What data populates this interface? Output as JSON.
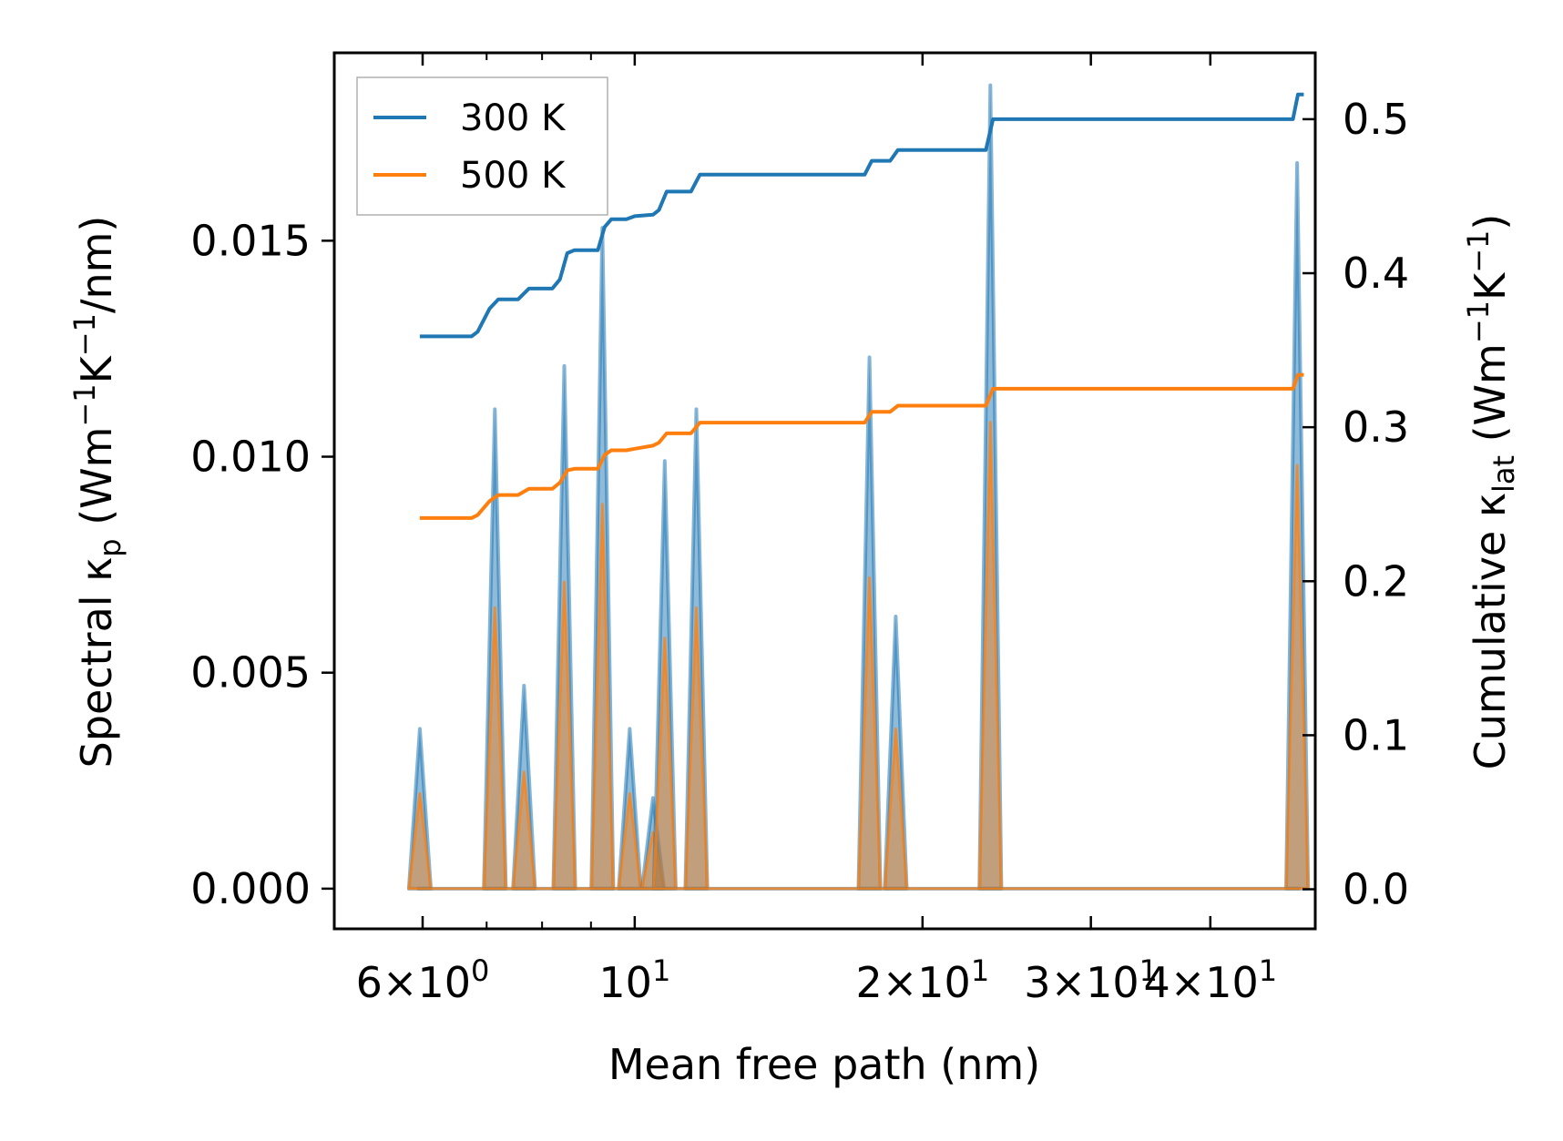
{
  "chart_data": {
    "type": "line",
    "x_scale": "log",
    "xlabel": "Mean free path (nm)",
    "xlim": [
      4.85,
      51.5
    ],
    "x_ticks": [
      {
        "value": 6,
        "mantissa": "6",
        "exponent": "0"
      },
      {
        "value": 10,
        "mantissa": "",
        "exponent": "1"
      },
      {
        "value": 20,
        "mantissa": "2",
        "exponent": "1"
      },
      {
        "value": 30,
        "mantissa": "3",
        "exponent": "1"
      },
      {
        "value": 40,
        "mantissa": "4",
        "exponent": "1"
      }
    ],
    "left_axis": {
      "label_prefix": "Spectral κ",
      "label_sub": "p",
      "label_unit_open": " (Wm",
      "label_exp1": "−1",
      "label_unit_mid": "K",
      "label_exp2": "−1",
      "label_unit_close": "/nm)",
      "ylim": [
        -0.00093,
        0.01935
      ],
      "ticks": [
        "0.000",
        "0.005",
        "0.010",
        "0.015"
      ],
      "tick_values": [
        0,
        0.005,
        0.01,
        0.015
      ]
    },
    "right_axis": {
      "label_prefix": "Cumulative κ",
      "label_sub": "lat",
      "label_unit_open": " (Wm",
      "label_exp1": "−1",
      "label_unit_mid": "K",
      "label_exp2": "−1",
      "label_unit_close": ")",
      "ylim": [
        -0.0257,
        0.5431
      ],
      "ticks": [
        "0.0",
        "0.1",
        "0.2",
        "0.3",
        "0.4",
        "0.5"
      ],
      "tick_values": [
        0,
        0.1,
        0.2,
        0.3,
        0.4,
        0.5
      ]
    },
    "legend": {
      "position": "top-left",
      "entries": [
        {
          "label": "300 K",
          "color": "#1f77b4"
        },
        {
          "label": "500 K",
          "color": "#ff7f0e"
        }
      ]
    },
    "spectral_peaks": [
      {
        "x": 5.96,
        "v300": 0.0037,
        "v500": 0.0022
      },
      {
        "x": 7.14,
        "v300": 0.0111,
        "v500": 0.0065
      },
      {
        "x": 7.66,
        "v300": 0.0047,
        "v500": 0.0027
      },
      {
        "x": 8.44,
        "v300": 0.0121,
        "v500": 0.0071
      },
      {
        "x": 9.25,
        "v300": 0.0153,
        "v500": 0.0089
      },
      {
        "x": 9.88,
        "v300": 0.0037,
        "v500": 0.0022
      },
      {
        "x": 10.45,
        "v300": 0.0021,
        "v500": 0.0013
      },
      {
        "x": 10.75,
        "v300": 0.0099,
        "v500": 0.0058
      },
      {
        "x": 11.6,
        "v300": 0.0111,
        "v500": 0.0065
      },
      {
        "x": 17.6,
        "v300": 0.0123,
        "v500": 0.0072
      },
      {
        "x": 18.75,
        "v300": 0.0063,
        "v500": 0.0037
      },
      {
        "x": 23.55,
        "v300": 0.0186,
        "v500": 0.0108
      },
      {
        "x": 49.3,
        "v300": 0.0168,
        "v500": 0.0098
      }
    ],
    "series": [
      {
        "name": "300 K",
        "color": "#1f77b4",
        "cumulative": [
          [
            5.96,
            0.359
          ],
          [
            6.75,
            0.359
          ],
          [
            6.85,
            0.362
          ],
          [
            7.05,
            0.377
          ],
          [
            7.2,
            0.383
          ],
          [
            7.55,
            0.383
          ],
          [
            7.75,
            0.39
          ],
          [
            8.2,
            0.39
          ],
          [
            8.35,
            0.396
          ],
          [
            8.5,
            0.413
          ],
          [
            8.65,
            0.415
          ],
          [
            9.15,
            0.415
          ],
          [
            9.3,
            0.43
          ],
          [
            9.45,
            0.435
          ],
          [
            9.8,
            0.435
          ],
          [
            10.0,
            0.437
          ],
          [
            10.45,
            0.438
          ],
          [
            10.6,
            0.441
          ],
          [
            10.8,
            0.453
          ],
          [
            11.45,
            0.453
          ],
          [
            11.7,
            0.464
          ],
          [
            17.4,
            0.464
          ],
          [
            17.7,
            0.473
          ],
          [
            18.5,
            0.473
          ],
          [
            18.85,
            0.48
          ],
          [
            23.3,
            0.48
          ],
          [
            23.7,
            0.5
          ],
          [
            48.8,
            0.5
          ],
          [
            49.4,
            0.516
          ],
          [
            50.1,
            0.516
          ]
        ]
      },
      {
        "name": "500 K",
        "color": "#ff7f0e",
        "cumulative": [
          [
            5.96,
            0.241
          ],
          [
            6.75,
            0.241
          ],
          [
            6.85,
            0.243
          ],
          [
            7.05,
            0.252
          ],
          [
            7.2,
            0.256
          ],
          [
            7.55,
            0.256
          ],
          [
            7.75,
            0.26
          ],
          [
            8.2,
            0.26
          ],
          [
            8.35,
            0.264
          ],
          [
            8.5,
            0.272
          ],
          [
            8.65,
            0.273
          ],
          [
            9.15,
            0.273
          ],
          [
            9.3,
            0.282
          ],
          [
            9.45,
            0.285
          ],
          [
            9.8,
            0.285
          ],
          [
            10.0,
            0.286
          ],
          [
            10.45,
            0.288
          ],
          [
            10.6,
            0.29
          ],
          [
            10.8,
            0.296
          ],
          [
            11.45,
            0.296
          ],
          [
            11.7,
            0.303
          ],
          [
            17.4,
            0.303
          ],
          [
            17.7,
            0.31
          ],
          [
            18.5,
            0.31
          ],
          [
            18.85,
            0.314
          ],
          [
            23.3,
            0.314
          ],
          [
            23.7,
            0.325
          ],
          [
            48.8,
            0.325
          ],
          [
            49.4,
            0.334
          ],
          [
            50.1,
            0.334
          ]
        ]
      }
    ]
  }
}
